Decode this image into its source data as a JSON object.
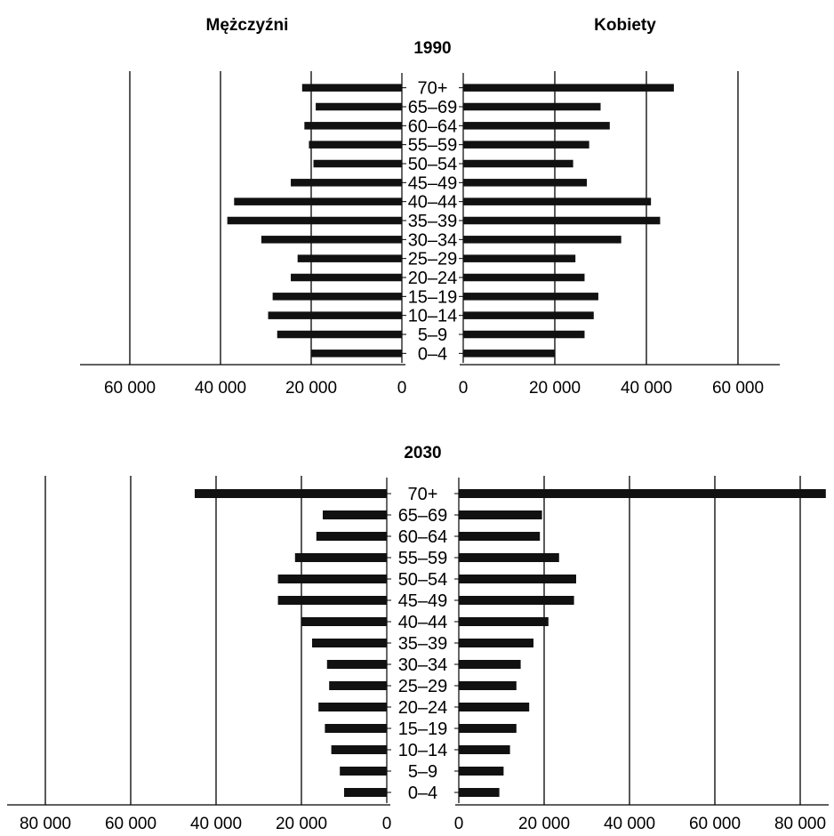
{
  "chart_data": {
    "type": "bar",
    "legend": {
      "left": "Mężczyźni",
      "right": "Kobiety"
    },
    "categories": [
      "70+",
      "65–69",
      "60–64",
      "55–59",
      "50–54",
      "45–49",
      "40–44",
      "35–39",
      "30–34",
      "25–29",
      "20–24",
      "15–19",
      "10–14",
      "5–9",
      "0–4"
    ],
    "panels": [
      {
        "year": "1990",
        "men_ticks": [
          "60 000",
          "40 000",
          "20 000",
          "0"
        ],
        "women_ticks": [
          "0",
          "20 000",
          "40 000",
          "60 000"
        ],
        "xlim_men": [
          0,
          70000
        ],
        "xlim_women": [
          0,
          70000
        ],
        "series": [
          {
            "name": "Mężczyźni",
            "values": [
              22000,
              19000,
              21500,
              20500,
              19500,
              24500,
              37000,
              38500,
              31000,
              23000,
              24500,
              28500,
              29500,
              27500,
              20000
            ]
          },
          {
            "name": "Kobiety",
            "values": [
              46000,
              30000,
              32000,
              27500,
              24000,
              27000,
              41000,
              43000,
              34500,
              24500,
              26500,
              29500,
              28500,
              26500,
              20000
            ]
          }
        ]
      },
      {
        "year": "2030",
        "men_ticks": [
          "80 000",
          "60 000",
          "40 000",
          "20 000",
          "0"
        ],
        "women_ticks": [
          "0",
          "20 000",
          "40 000",
          "60 000",
          "80 000"
        ],
        "xlim_men": [
          0,
          85000
        ],
        "xlim_women": [
          0,
          87000
        ],
        "series": [
          {
            "name": "Mężczyźni",
            "values": [
              45000,
              15000,
              16500,
              21500,
              25500,
              25500,
              20000,
              17500,
              14000,
              13500,
              16000,
              14500,
              13000,
              11000,
              10000
            ]
          },
          {
            "name": "Kobiety",
            "values": [
              86000,
              19500,
              19000,
              23500,
              27500,
              27000,
              21000,
              17500,
              14500,
              13500,
              16500,
              13500,
              12000,
              10500,
              9500
            ]
          }
        ]
      }
    ]
  }
}
